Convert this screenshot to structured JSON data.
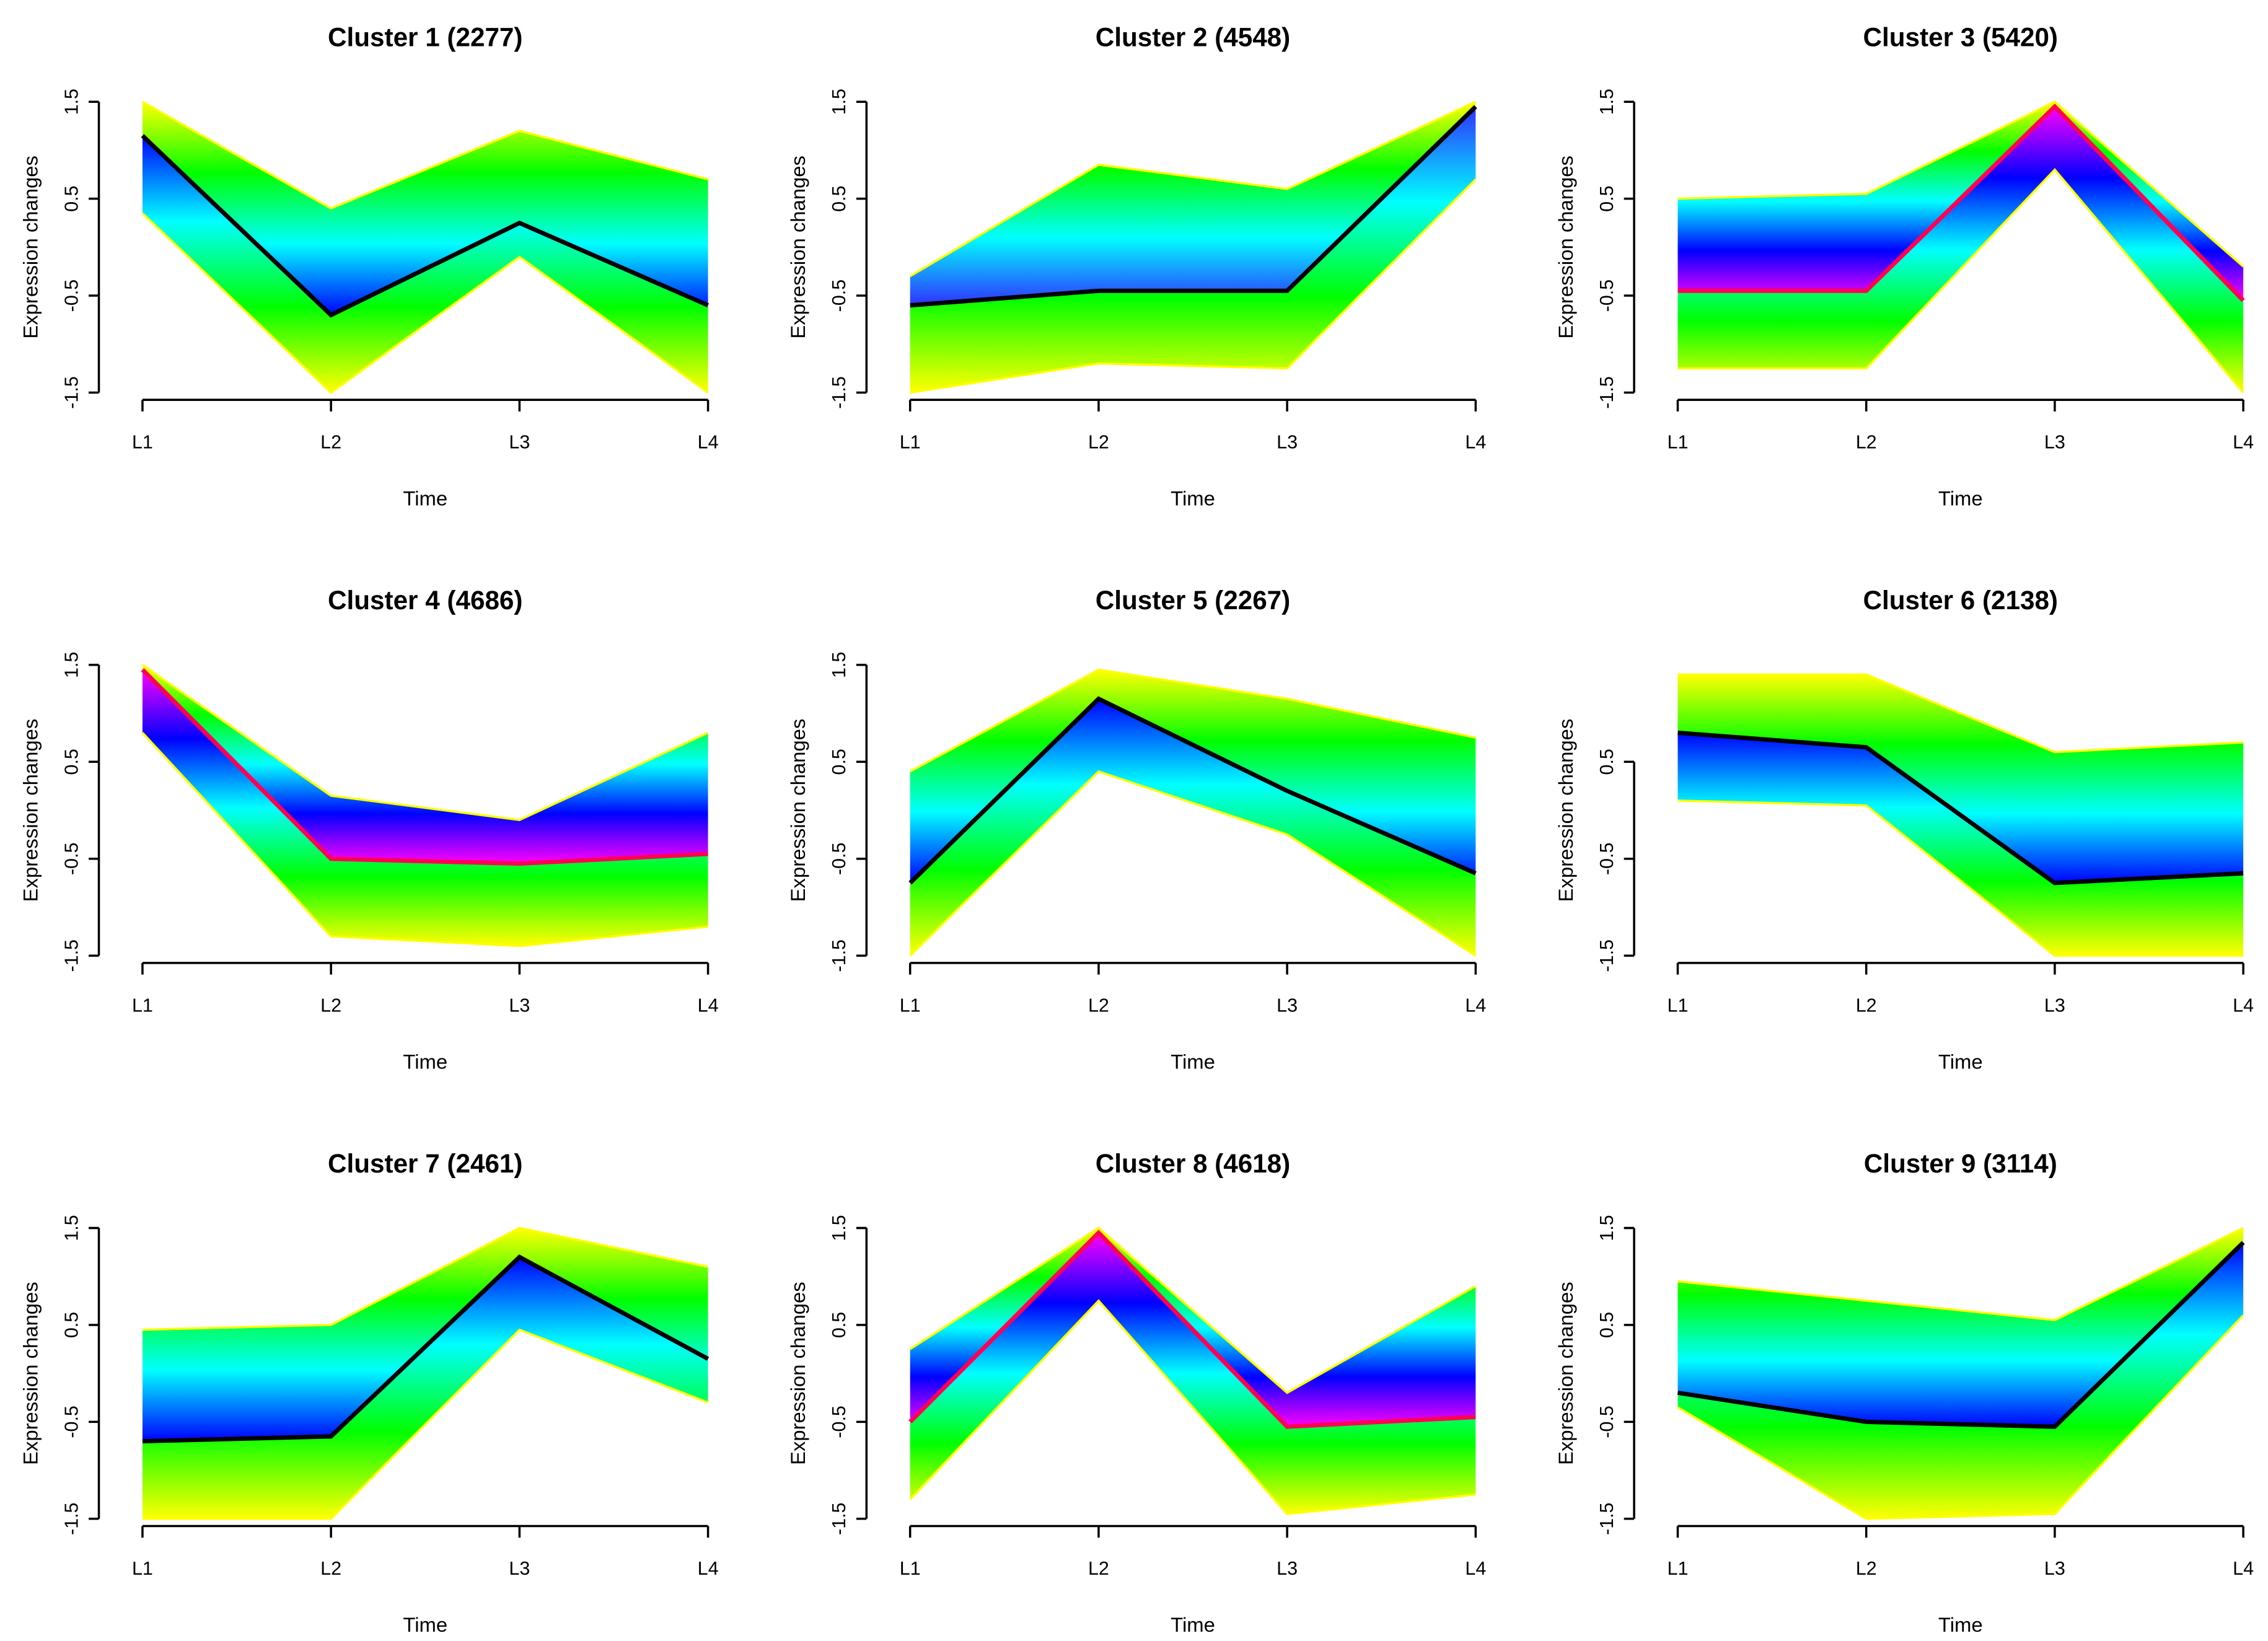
{
  "chart_data": [
    {
      "type": "line",
      "title": "Cluster 1 (2277)",
      "categories": [
        "L1",
        "L2",
        "L3",
        "L4"
      ],
      "xlabel": "Time",
      "ylabel": "Expression changes",
      "ylim": [
        -1.5,
        1.5
      ],
      "yticks": [
        -1.5,
        -0.5,
        0.5,
        1.5
      ],
      "band_colors": [
        "#ffff00",
        "#00ff00",
        "#00ffff",
        "#0000ff"
      ],
      "series": [
        {
          "color": "#ffff00",
          "values": [
            1.5,
            0.4,
            1.2,
            0.7
          ]
        },
        {
          "color": "#ffff00",
          "values": [
            0.35,
            -1.5,
            -0.1,
            -1.5
          ]
        },
        {
          "color": "#000000",
          "values": [
            1.15,
            -0.7,
            0.25,
            -0.6
          ]
        }
      ]
    },
    {
      "type": "line",
      "title": "Cluster 2 (4548)",
      "categories": [
        "L1",
        "L2",
        "L3",
        "L4"
      ],
      "xlabel": "Time",
      "ylabel": "Expression changes",
      "ylim": [
        -1.5,
        1.5
      ],
      "yticks": [
        -1.5,
        -0.5,
        0.5,
        1.5
      ],
      "band_colors": [
        "#ffff00",
        "#00ff00",
        "#00ffff",
        "#3030ff"
      ],
      "series": [
        {
          "color": "#ffff00",
          "values": [
            -0.3,
            0.85,
            0.6,
            1.5
          ]
        },
        {
          "color": "#ffff00",
          "values": [
            -1.5,
            -1.2,
            -1.25,
            0.7
          ]
        },
        {
          "color": "#000000",
          "values": [
            -0.6,
            -0.45,
            -0.45,
            1.45
          ]
        }
      ]
    },
    {
      "type": "line",
      "title": "Cluster 3 (5420)",
      "categories": [
        "L1",
        "L2",
        "L3",
        "L4"
      ],
      "xlabel": "Time",
      "ylabel": "Expression changes",
      "ylim": [
        -1.5,
        1.5
      ],
      "yticks": [
        -1.5,
        -0.5,
        0.5,
        1.5
      ],
      "band_colors": [
        "#ffff00",
        "#00ff00",
        "#00ffff",
        "#0000ff",
        "#ff00ff"
      ],
      "series": [
        {
          "color": "#ffff00",
          "values": [
            0.5,
            0.55,
            1.5,
            -0.2
          ]
        },
        {
          "color": "#ffff00",
          "values": [
            -1.25,
            -1.25,
            0.8,
            -1.5
          ]
        },
        {
          "color": "#ff0055",
          "values": [
            -0.45,
            -0.45,
            1.45,
            -0.55
          ]
        }
      ]
    },
    {
      "type": "line",
      "title": "Cluster 4 (4686)",
      "categories": [
        "L1",
        "L2",
        "L3",
        "L4"
      ],
      "xlabel": "Time",
      "ylabel": "Expression changes",
      "ylim": [
        -1.5,
        1.5
      ],
      "yticks": [
        -1.5,
        -0.5,
        0.5,
        1.5
      ],
      "band_colors": [
        "#ffff00",
        "#00ff00",
        "#00ffff",
        "#0000ff",
        "#ff00ff"
      ],
      "series": [
        {
          "color": "#ffff00",
          "values": [
            1.5,
            0.15,
            -0.1,
            0.8
          ]
        },
        {
          "color": "#ffff00",
          "values": [
            0.8,
            -1.3,
            -1.4,
            -1.2
          ]
        },
        {
          "color": "#ff0055",
          "values": [
            1.45,
            -0.5,
            -0.55,
            -0.45
          ]
        }
      ]
    },
    {
      "type": "line",
      "title": "Cluster 5 (2267)",
      "categories": [
        "L1",
        "L2",
        "L3",
        "L4"
      ],
      "xlabel": "Time",
      "ylabel": "Expression changes",
      "ylim": [
        -1.5,
        1.5
      ],
      "yticks": [
        -1.5,
        -0.5,
        0.5,
        1.5
      ],
      "band_colors": [
        "#ffff00",
        "#00ff00",
        "#00ffff",
        "#0000ff"
      ],
      "series": [
        {
          "color": "#ffff00",
          "values": [
            0.4,
            1.45,
            1.15,
            0.75
          ]
        },
        {
          "color": "#ffff00",
          "values": [
            -1.5,
            0.4,
            -0.25,
            -1.5
          ]
        },
        {
          "color": "#000000",
          "values": [
            -0.75,
            1.15,
            0.2,
            -0.65
          ]
        }
      ]
    },
    {
      "type": "line",
      "title": "Cluster 6 (2138)",
      "categories": [
        "L1",
        "L2",
        "L3",
        "L4"
      ],
      "xlabel": "Time",
      "ylabel": "Expression changes",
      "ylim": [
        -1.5,
        1.5
      ],
      "yticks": [
        -1.5,
        -0.5,
        0.5
      ],
      "band_colors": [
        "#ffff00",
        "#00ff00",
        "#00ffff",
        "#0000ff"
      ],
      "series": [
        {
          "color": "#ffff00",
          "values": [
            1.4,
            1.4,
            0.6,
            0.7
          ]
        },
        {
          "color": "#ffff00",
          "values": [
            0.1,
            0.05,
            -1.5,
            -1.5
          ]
        },
        {
          "color": "#000000",
          "values": [
            0.8,
            0.65,
            -0.75,
            -0.65
          ]
        }
      ]
    },
    {
      "type": "line",
      "title": "Cluster 7 (2461)",
      "categories": [
        "L1",
        "L2",
        "L3",
        "L4"
      ],
      "xlabel": "Time",
      "ylabel": "Expression changes",
      "ylim": [
        -1.5,
        1.5
      ],
      "yticks": [
        -1.5,
        -0.5,
        0.5,
        1.5
      ],
      "band_colors": [
        "#ffff00",
        "#00ff00",
        "#00ffff",
        "#0000ff"
      ],
      "series": [
        {
          "color": "#ffff00",
          "values": [
            0.45,
            0.5,
            1.5,
            1.1
          ]
        },
        {
          "color": "#ffff00",
          "values": [
            -1.5,
            -1.5,
            0.45,
            -0.3
          ]
        },
        {
          "color": "#000000",
          "values": [
            -0.7,
            -0.65,
            1.2,
            0.15
          ]
        }
      ]
    },
    {
      "type": "line",
      "title": "Cluster 8 (4618)",
      "categories": [
        "L1",
        "L2",
        "L3",
        "L4"
      ],
      "xlabel": "Time",
      "ylabel": "Expression changes",
      "ylim": [
        -1.5,
        1.5
      ],
      "yticks": [
        -1.5,
        -0.5,
        0.5,
        1.5
      ],
      "band_colors": [
        "#ffff00",
        "#00ff00",
        "#00ffff",
        "#0000ff",
        "#ff00ff"
      ],
      "series": [
        {
          "color": "#ffff00",
          "values": [
            0.25,
            1.5,
            -0.2,
            0.9
          ]
        },
        {
          "color": "#ffff00",
          "values": [
            -1.3,
            0.75,
            -1.45,
            -1.25
          ]
        },
        {
          "color": "#ff0055",
          "values": [
            -0.5,
            1.45,
            -0.55,
            -0.45
          ]
        }
      ]
    },
    {
      "type": "line",
      "title": "Cluster 9 (3114)",
      "categories": [
        "L1",
        "L2",
        "L3",
        "L4"
      ],
      "xlabel": "Time",
      "ylabel": "Expression changes",
      "ylim": [
        -1.5,
        1.5
      ],
      "yticks": [
        -1.5,
        -0.5,
        0.5,
        1.5
      ],
      "band_colors": [
        "#ffff00",
        "#00ff00",
        "#00ffff",
        "#0000ff"
      ],
      "series": [
        {
          "color": "#ffff00",
          "values": [
            0.95,
            0.75,
            0.55,
            1.5
          ]
        },
        {
          "color": "#ffff00",
          "values": [
            -0.35,
            -1.5,
            -1.45,
            0.6
          ]
        },
        {
          "color": "#000000",
          "values": [
            -0.2,
            -0.5,
            -0.55,
            1.35
          ]
        }
      ]
    }
  ]
}
